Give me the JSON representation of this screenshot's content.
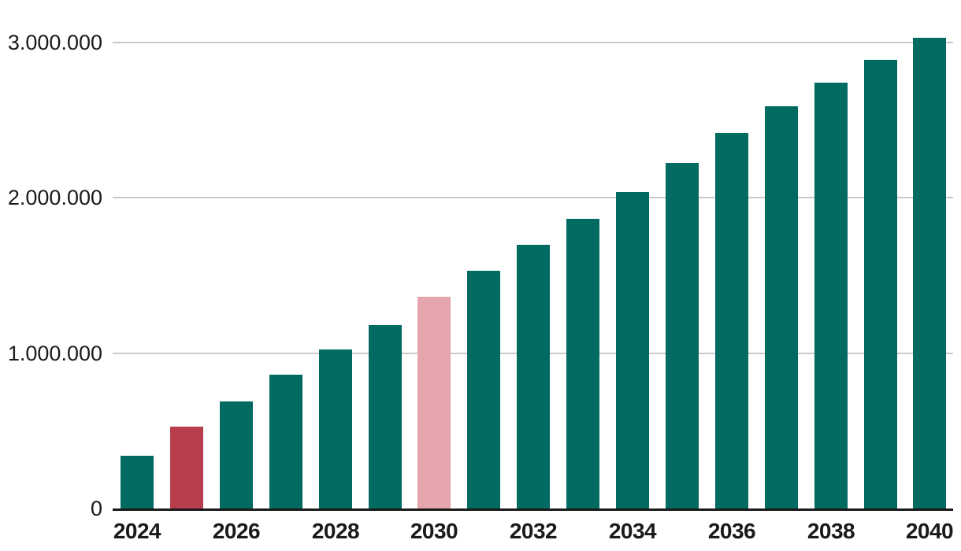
{
  "chart_data": {
    "type": "bar",
    "title": "",
    "xlabel": "",
    "ylabel": "",
    "categories": [
      "2024",
      "2025",
      "2026",
      "2027",
      "2028",
      "2029",
      "2030",
      "2031",
      "2032",
      "2033",
      "2034",
      "2035",
      "2036",
      "2037",
      "2038",
      "2039",
      "2040"
    ],
    "values": [
      340000,
      525000,
      690000,
      860000,
      1025000,
      1180000,
      1360000,
      1530000,
      1695000,
      1865000,
      2035000,
      2225000,
      2415000,
      2585000,
      2740000,
      2885000,
      3030000
    ],
    "bar_color_keys": [
      "teal",
      "red",
      "teal",
      "teal",
      "teal",
      "teal",
      "pink",
      "teal",
      "teal",
      "teal",
      "teal",
      "teal",
      "teal",
      "teal",
      "teal",
      "teal",
      "teal"
    ],
    "colors": {
      "teal": "#016A61",
      "red": "#B73E4D",
      "pink": "#E5A5AD",
      "gridline": "#C9C9C9",
      "axis": "#1A1A1A",
      "label": "#1A1A1A"
    },
    "y_axis": {
      "ticks": [
        {
          "value": 0,
          "label": "0"
        },
        {
          "value": 1000000,
          "label": "1.000.000"
        },
        {
          "value": 2000000,
          "label": "2.000.000"
        },
        {
          "value": 3000000,
          "label": "3.000.000"
        }
      ]
    },
    "x_axis": {
      "labels": [
        "2024",
        "2026",
        "2028",
        "2030",
        "2032",
        "2034",
        "2036",
        "2038",
        "2040"
      ]
    },
    "ylim": [
      0,
      3270000
    ],
    "grid": true,
    "legend_position": "none"
  }
}
